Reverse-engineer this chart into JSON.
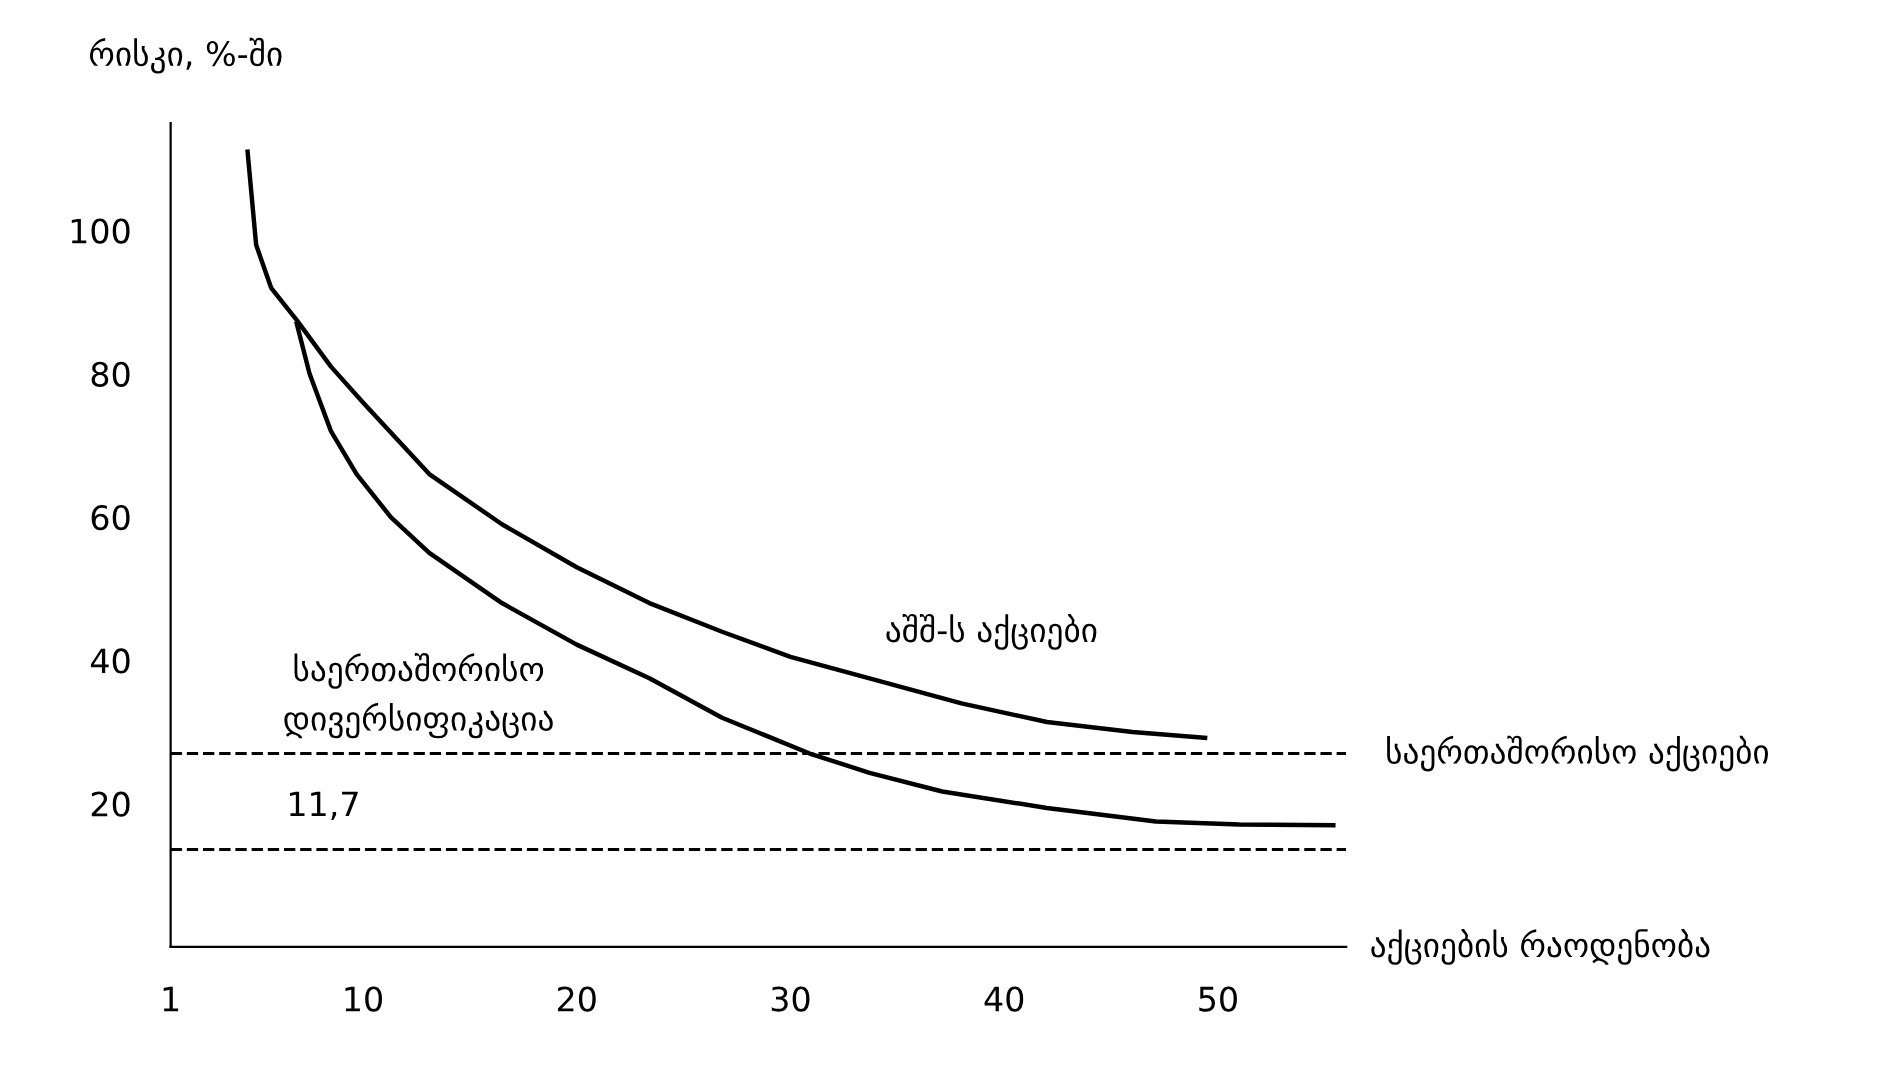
{
  "chart_data": {
    "type": "line",
    "ylabel": "რისკი, %-ში",
    "xlabel": "აქციების რაოდენობა",
    "xlim": [
      1,
      56
    ],
    "ylim": [
      0,
      115
    ],
    "xticks": [
      1,
      10,
      20,
      30,
      40,
      50
    ],
    "yticks": [
      20,
      40,
      60,
      80,
      100
    ],
    "grid": false,
    "legend": false,
    "marker": "none",
    "line_style": "solid",
    "series": [
      {
        "name": "აშშ-ს აქციები",
        "color": "#000000",
        "x": [
          4.6,
          5.0,
          5.7,
          6.9,
          8.5,
          10,
          13.1,
          16.5,
          20,
          23.4,
          26.8,
          30,
          33.7,
          38,
          42,
          46,
          49.4
        ],
        "values": [
          111,
          98,
          92,
          87.5,
          81,
          76,
          66,
          59,
          53,
          48,
          44,
          40.5,
          37.5,
          34,
          31.4,
          30,
          29.2
        ]
      },
      {
        "name": "საერთაშორისო დივერსიფიკაცია",
        "color": "#000000",
        "x": [
          6.9,
          7.5,
          8.5,
          9.7,
          11.3,
          13.1,
          16.5,
          20,
          23.4,
          26.8,
          30.9,
          33.7,
          37.1,
          42,
          47.1,
          51,
          55.4
        ],
        "values": [
          87,
          80,
          72,
          66,
          60,
          55,
          48,
          42.2,
          37.5,
          32,
          27,
          24.3,
          21.7,
          19.4,
          17.5,
          17.1,
          17
        ]
      }
    ],
    "ref_lines": [
      {
        "axis": "y",
        "value": 27,
        "label": "საერთაშორისო აქციები",
        "line_style": "dashed",
        "color": "#000000"
      },
      {
        "axis": "y",
        "value": 13.6,
        "line_style": "dashed",
        "color": "#000000"
      }
    ],
    "annotations": [
      "11,7"
    ]
  }
}
